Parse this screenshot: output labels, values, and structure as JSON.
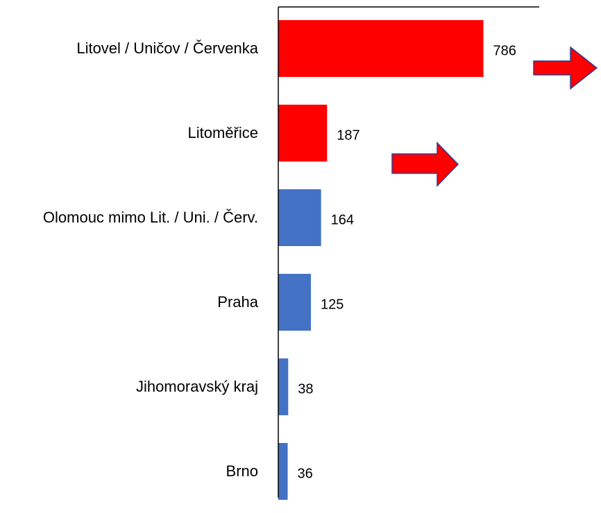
{
  "chart_data": {
    "type": "barh",
    "categories": [
      "Litovel / Uničov / Červenka",
      "Litoměřice",
      "Olomouc mimo Lit. / Uni. / Červ.",
      "Praha",
      "Jihomoravský kraj",
      "Brno"
    ],
    "values": [
      786,
      187,
      164,
      125,
      38,
      36
    ],
    "colors": [
      "#ff0000",
      "#ff0000",
      "#4472c4",
      "#4472c4",
      "#4472c4",
      "#4472c4"
    ],
    "xlim": [
      0,
      1000
    ]
  }
}
